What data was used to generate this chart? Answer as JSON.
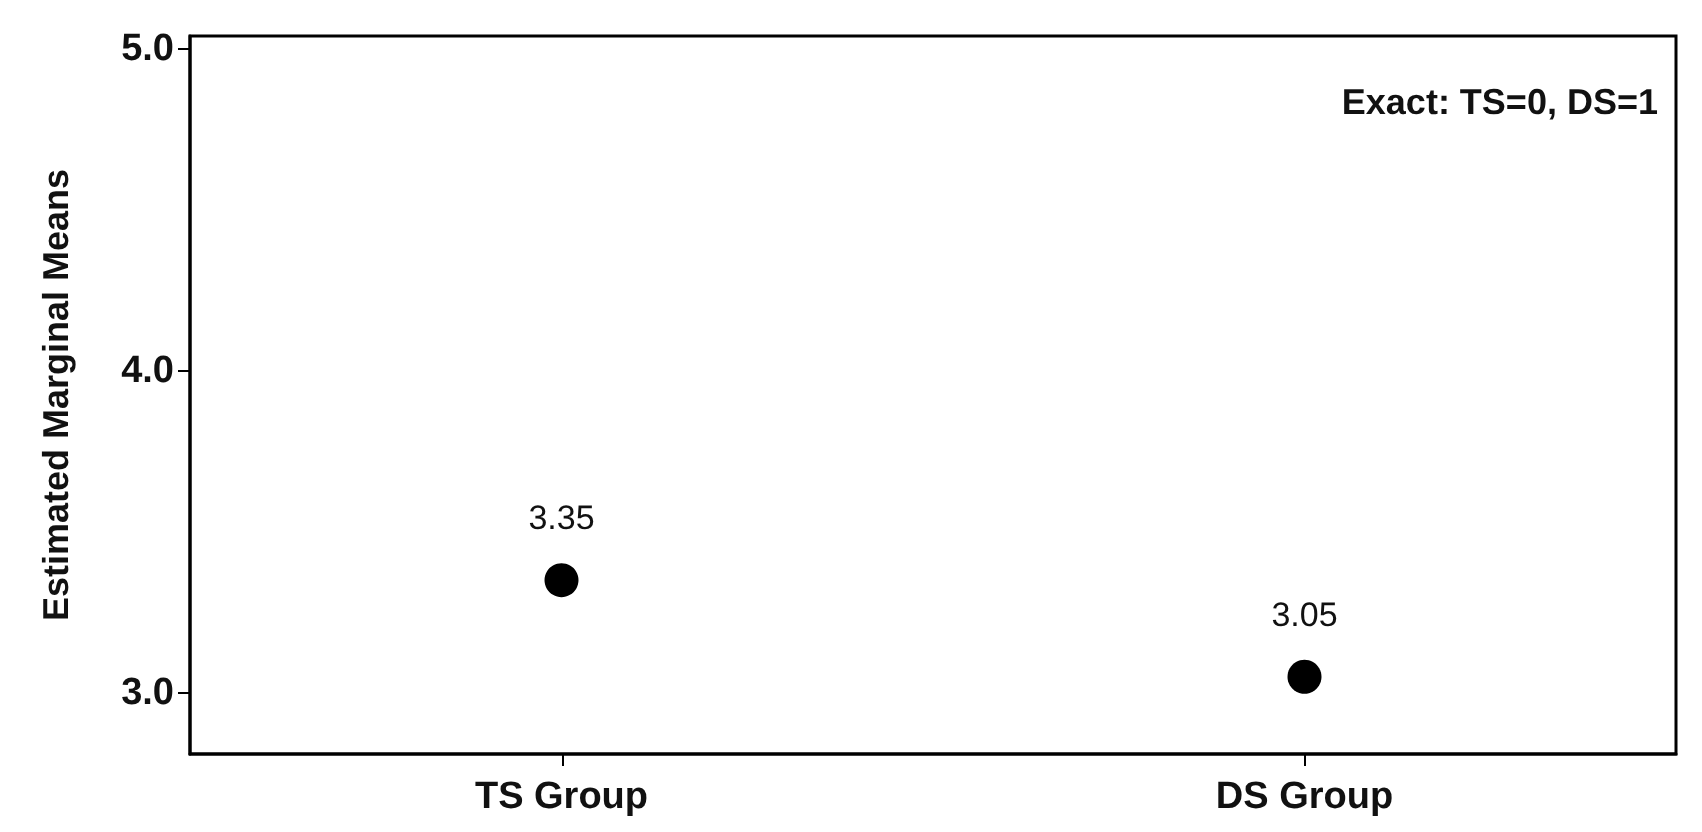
{
  "chart_data": {
    "type": "scatter",
    "ylabel": "Estimated Marginal Means",
    "categories": [
      "TS Group",
      "DS Group"
    ],
    "values": [
      3.35,
      3.05
    ],
    "color": "#000000",
    "ylim": [
      2.81,
      5.04
    ],
    "yticks": [
      {
        "value": 3,
        "label": "3.0"
      },
      {
        "value": 4,
        "label": "4.0"
      },
      {
        "value": 5,
        "label": "5.0"
      }
    ],
    "data_labels": true,
    "marker": "circle",
    "grid": false,
    "annotations": [
      "Exact: TS=0, DS=1"
    ]
  }
}
